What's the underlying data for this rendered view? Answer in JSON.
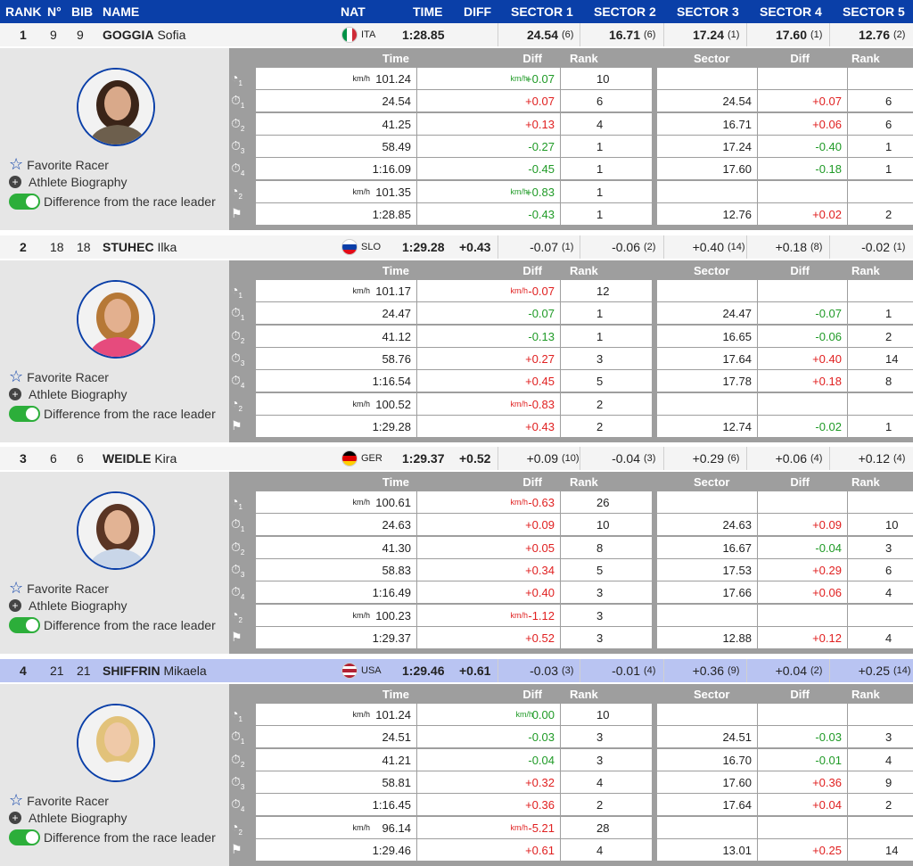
{
  "header": {
    "rank": "RANK",
    "no": "N°",
    "bib": "BIB",
    "name": "NAME",
    "nat": "NAT",
    "time": "TIME",
    "diff": "DIFF",
    "sectors": [
      "SECTOR 1",
      "SECTOR 2",
      "SECTOR 3",
      "SECTOR 4",
      "SECTOR 5"
    ]
  },
  "table_headers": {
    "time": "Time",
    "diff": "Diff",
    "rank": "Rank",
    "sector": "Sector",
    "sdiff": "Diff",
    "srank": "Rank"
  },
  "links": {
    "favorite": "Favorite Racer",
    "bio": "Athlete Biography",
    "toggle": "Difference from the race leader"
  },
  "unit": "km/h",
  "colors": {
    "header": "#0a3fa8",
    "green": "#1f9a26",
    "red": "#e02020",
    "highlight": "#b9c4f2"
  },
  "athletes": [
    {
      "rank": "1",
      "no": "9",
      "bib": "9",
      "last": "GOGGIA",
      "first": "Sofia",
      "nat": "ITA",
      "time": "1:28.85",
      "diff": "",
      "sectors": [
        [
          "24.54",
          "(6)"
        ],
        [
          "16.71",
          "(6)"
        ],
        [
          "17.24",
          "(1)"
        ],
        [
          "17.60",
          "(1)"
        ],
        [
          "12.76",
          "(2)"
        ]
      ],
      "sectors_bold": true,
      "rows": [
        {
          "icon": "speed",
          "sub": "1",
          "time": "101.24",
          "unit": true,
          "diff": "+0.07",
          "dunit": true,
          "dc": "g",
          "rank": "10",
          "sector": "",
          "sdiff": "",
          "sdc": "",
          "srank": ""
        },
        {
          "icon": "timer",
          "sub": "1",
          "time": "24.54",
          "diff": "+0.07",
          "dc": "rd",
          "rank": "6",
          "sector": "24.54",
          "sdiff": "+0.07",
          "sdc": "rd",
          "srank": "6"
        },
        {
          "icon": "timer",
          "sub": "2",
          "time": "41.25",
          "diff": "+0.13",
          "dc": "rd",
          "rank": "4",
          "sector": "16.71",
          "sdiff": "+0.06",
          "sdc": "rd",
          "srank": "6"
        },
        {
          "icon": "timer",
          "sub": "3",
          "time": "58.49",
          "diff": "-0.27",
          "dc": "g",
          "rank": "1",
          "sector": "17.24",
          "sdiff": "-0.40",
          "sdc": "g",
          "srank": "1"
        },
        {
          "icon": "timer",
          "sub": "4",
          "time": "1:16.09",
          "diff": "-0.45",
          "dc": "g",
          "rank": "1",
          "sector": "17.60",
          "sdiff": "-0.18",
          "sdc": "g",
          "srank": "1"
        },
        {
          "icon": "speed",
          "sub": "2",
          "time": "101.35",
          "unit": true,
          "diff": "+0.83",
          "dunit": true,
          "dc": "g",
          "rank": "1",
          "sector": "",
          "sdiff": "",
          "sdc": "",
          "srank": ""
        },
        {
          "icon": "flag",
          "sub": "",
          "time": "1:28.85",
          "diff": "-0.43",
          "dc": "g",
          "rank": "1",
          "sector": "12.76",
          "sdiff": "+0.02",
          "sdc": "rd",
          "srank": "2"
        }
      ]
    },
    {
      "rank": "2",
      "no": "18",
      "bib": "18",
      "last": "STUHEC",
      "first": "Ilka",
      "nat": "SLO",
      "time": "1:29.28",
      "diff": "+0.43",
      "sectors": [
        [
          "-0.07",
          "(1)"
        ],
        [
          "-0.06",
          "(2)"
        ],
        [
          "+0.40",
          "(14)"
        ],
        [
          "+0.18",
          "(8)"
        ],
        [
          "-0.02",
          "(1)"
        ]
      ],
      "rows": [
        {
          "icon": "speed",
          "sub": "1",
          "time": "101.17",
          "unit": true,
          "diff": "-0.07",
          "dunit": true,
          "dc": "rd",
          "rank": "12",
          "sector": "",
          "sdiff": "",
          "sdc": "",
          "srank": ""
        },
        {
          "icon": "timer",
          "sub": "1",
          "time": "24.47",
          "diff": "-0.07",
          "dc": "g",
          "rank": "1",
          "sector": "24.47",
          "sdiff": "-0.07",
          "sdc": "g",
          "srank": "1"
        },
        {
          "icon": "timer",
          "sub": "2",
          "time": "41.12",
          "diff": "-0.13",
          "dc": "g",
          "rank": "1",
          "sector": "16.65",
          "sdiff": "-0.06",
          "sdc": "g",
          "srank": "2"
        },
        {
          "icon": "timer",
          "sub": "3",
          "time": "58.76",
          "diff": "+0.27",
          "dc": "rd",
          "rank": "3",
          "sector": "17.64",
          "sdiff": "+0.40",
          "sdc": "rd",
          "srank": "14"
        },
        {
          "icon": "timer",
          "sub": "4",
          "time": "1:16.54",
          "diff": "+0.45",
          "dc": "rd",
          "rank": "5",
          "sector": "17.78",
          "sdiff": "+0.18",
          "sdc": "rd",
          "srank": "8"
        },
        {
          "icon": "speed",
          "sub": "2",
          "time": "100.52",
          "unit": true,
          "diff": "-0.83",
          "dunit": true,
          "dc": "rd",
          "rank": "2",
          "sector": "",
          "sdiff": "",
          "sdc": "",
          "srank": ""
        },
        {
          "icon": "flag",
          "sub": "",
          "time": "1:29.28",
          "diff": "+0.43",
          "dc": "rd",
          "rank": "2",
          "sector": "12.74",
          "sdiff": "-0.02",
          "sdc": "g",
          "srank": "1"
        }
      ]
    },
    {
      "rank": "3",
      "no": "6",
      "bib": "6",
      "last": "WEIDLE",
      "first": "Kira",
      "nat": "GER",
      "time": "1:29.37",
      "diff": "+0.52",
      "sectors": [
        [
          "+0.09",
          "(10)"
        ],
        [
          "-0.04",
          "(3)"
        ],
        [
          "+0.29",
          "(6)"
        ],
        [
          "+0.06",
          "(4)"
        ],
        [
          "+0.12",
          "(4)"
        ]
      ],
      "rows": [
        {
          "icon": "speed",
          "sub": "1",
          "time": "100.61",
          "unit": true,
          "diff": "-0.63",
          "dunit": true,
          "dc": "rd",
          "rank": "26",
          "sector": "",
          "sdiff": "",
          "sdc": "",
          "srank": ""
        },
        {
          "icon": "timer",
          "sub": "1",
          "time": "24.63",
          "diff": "+0.09",
          "dc": "rd",
          "rank": "10",
          "sector": "24.63",
          "sdiff": "+0.09",
          "sdc": "rd",
          "srank": "10"
        },
        {
          "icon": "timer",
          "sub": "2",
          "time": "41.30",
          "diff": "+0.05",
          "dc": "rd",
          "rank": "8",
          "sector": "16.67",
          "sdiff": "-0.04",
          "sdc": "g",
          "srank": "3"
        },
        {
          "icon": "timer",
          "sub": "3",
          "time": "58.83",
          "diff": "+0.34",
          "dc": "rd",
          "rank": "5",
          "sector": "17.53",
          "sdiff": "+0.29",
          "sdc": "rd",
          "srank": "6"
        },
        {
          "icon": "timer",
          "sub": "4",
          "time": "1:16.49",
          "diff": "+0.40",
          "dc": "rd",
          "rank": "3",
          "sector": "17.66",
          "sdiff": "+0.06",
          "sdc": "rd",
          "srank": "4"
        },
        {
          "icon": "speed",
          "sub": "2",
          "time": "100.23",
          "unit": true,
          "diff": "-1.12",
          "dunit": true,
          "dc": "rd",
          "rank": "3",
          "sector": "",
          "sdiff": "",
          "sdc": "",
          "srank": ""
        },
        {
          "icon": "flag",
          "sub": "",
          "time": "1:29.37",
          "diff": "+0.52",
          "dc": "rd",
          "rank": "3",
          "sector": "12.88",
          "sdiff": "+0.12",
          "sdc": "rd",
          "srank": "4"
        }
      ]
    },
    {
      "rank": "4",
      "no": "21",
      "bib": "21",
      "last": "SHIFFRIN",
      "first": "Mikaela",
      "nat": "USA",
      "time": "1:29.46",
      "diff": "+0.61",
      "highlight": true,
      "sectors": [
        [
          "-0.03",
          "(3)"
        ],
        [
          "-0.01",
          "(4)"
        ],
        [
          "+0.36",
          "(9)"
        ],
        [
          "+0.04",
          "(2)"
        ],
        [
          "+0.25",
          "(14)"
        ]
      ],
      "rows": [
        {
          "icon": "speed",
          "sub": "1",
          "time": "101.24",
          "unit": true,
          "diff": "0.00",
          "dunit": true,
          "dc": "g",
          "rank": "10",
          "sector": "",
          "sdiff": "",
          "sdc": "",
          "srank": ""
        },
        {
          "icon": "timer",
          "sub": "1",
          "time": "24.51",
          "diff": "-0.03",
          "dc": "g",
          "rank": "3",
          "sector": "24.51",
          "sdiff": "-0.03",
          "sdc": "g",
          "srank": "3"
        },
        {
          "icon": "timer",
          "sub": "2",
          "time": "41.21",
          "diff": "-0.04",
          "dc": "g",
          "rank": "3",
          "sector": "16.70",
          "sdiff": "-0.01",
          "sdc": "g",
          "srank": "4"
        },
        {
          "icon": "timer",
          "sub": "3",
          "time": "58.81",
          "diff": "+0.32",
          "dc": "rd",
          "rank": "4",
          "sector": "17.60",
          "sdiff": "+0.36",
          "sdc": "rd",
          "srank": "9"
        },
        {
          "icon": "timer",
          "sub": "4",
          "time": "1:16.45",
          "diff": "+0.36",
          "dc": "rd",
          "rank": "2",
          "sector": "17.64",
          "sdiff": "+0.04",
          "sdc": "rd",
          "srank": "2"
        },
        {
          "icon": "speed",
          "sub": "2",
          "time": "96.14",
          "unit": true,
          "diff": "-5.21",
          "dunit": true,
          "dc": "rd",
          "rank": "28",
          "sector": "",
          "sdiff": "",
          "sdc": "",
          "srank": ""
        },
        {
          "icon": "flag",
          "sub": "",
          "time": "1:29.46",
          "diff": "+0.61",
          "dc": "rd",
          "rank": "4",
          "sector": "13.01",
          "sdiff": "+0.25",
          "sdc": "rd",
          "srank": "14"
        }
      ]
    }
  ]
}
